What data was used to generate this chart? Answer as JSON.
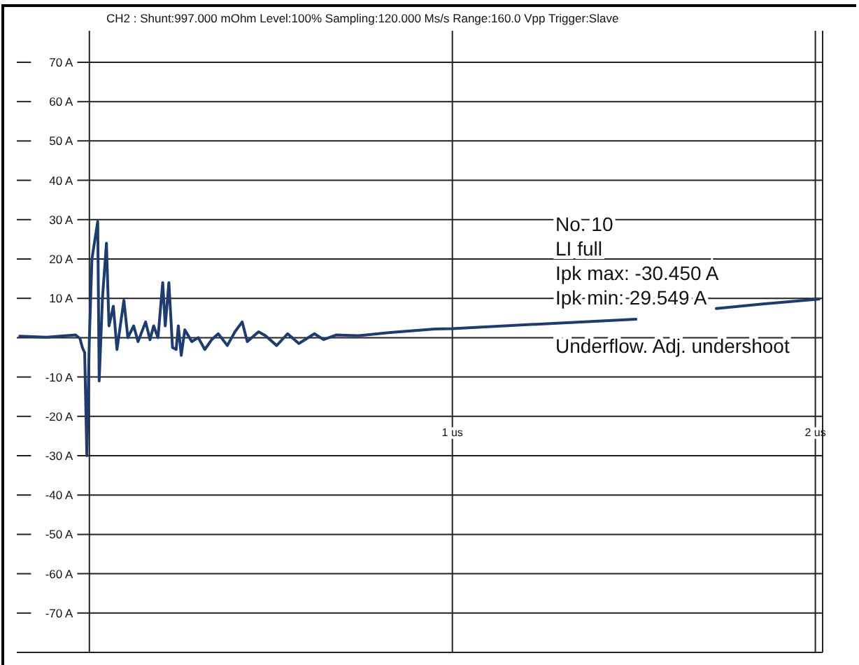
{
  "chart_data": {
    "type": "line",
    "title": "CH2 : Shunt:997.000 mOhm  Level:100%  Sampling:120.000 Ms/s  Range:160.0 Vpp  Trigger:Slave",
    "annotations": [
      "No. 10",
      "LI full",
      "Ipk max: -30.450 A",
      "Ipk min: 29.549 A",
      "Underflow. Adj. undershoot"
    ],
    "xlim": [
      -0.2,
      2.02
    ],
    "xticks": [
      {
        "value": 1,
        "label": "1 us"
      },
      {
        "value": 2,
        "label": "2 us"
      }
    ],
    "ylim": [
      -80,
      78
    ],
    "yticks": [
      {
        "value": -70,
        "label": "-70 A"
      },
      {
        "value": -60,
        "label": "-60 A"
      },
      {
        "value": -50,
        "label": "-50 A"
      },
      {
        "value": -40,
        "label": "-40 A"
      },
      {
        "value": -30,
        "label": "-30 A"
      },
      {
        "value": -20,
        "label": "-20 A"
      },
      {
        "value": -10,
        "label": "-10 A"
      },
      {
        "value": 0,
        "label": null
      },
      {
        "value": 10,
        "label": "10 A"
      },
      {
        "value": 20,
        "label": "20 A"
      },
      {
        "value": 30,
        "label": "30 A"
      },
      {
        "value": 40,
        "label": "40 A"
      },
      {
        "value": 50,
        "label": "50 A"
      },
      {
        "value": 60,
        "label": "60 A"
      },
      {
        "value": 70,
        "label": "70 A"
      }
    ],
    "grid": true,
    "marker": "none",
    "line_style": "solid",
    "series": [
      {
        "color": "#1f3c6e",
        "x": [
          -0.192,
          -0.118,
          -0.038,
          -0.026,
          -0.019,
          -0.013,
          -0.007,
          0,
          0.007,
          0.023,
          0.027,
          0.036,
          0.047,
          0.054,
          0.066,
          0.076,
          0.095,
          0.106,
          0.122,
          0.134,
          0.155,
          0.167,
          0.177,
          0.189,
          0.202,
          0.209,
          0.219,
          0.229,
          0.239,
          0.245,
          0.253,
          0.263,
          0.282,
          0.3,
          0.318,
          0.337,
          0.355,
          0.38,
          0.401,
          0.421,
          0.435,
          0.466,
          0.485,
          0.516,
          0.546,
          0.577,
          0.62,
          0.645,
          0.681,
          0.743,
          0.829,
          0.952,
          1.0,
          1.25,
          1.506,
          1.6,
          1.727,
          1.85,
          2.01
        ],
        "values": [
          0.4,
          0.1,
          0.7,
          -0.2,
          -2.6,
          -3.8,
          -30,
          0,
          20,
          29.5,
          -11,
          10,
          24,
          3,
          8,
          -3,
          9.5,
          0,
          3,
          -1,
          4,
          -0.5,
          3,
          0,
          14,
          3,
          14,
          -2.5,
          -3,
          3,
          -4.5,
          2,
          -1,
          0,
          -3,
          -0.5,
          1,
          -2,
          1.5,
          4,
          -1,
          1.5,
          0.5,
          -2,
          1,
          -1.5,
          1,
          -0.5,
          0.7,
          0.5,
          1.3,
          2.2,
          2.3,
          3.5,
          4.7,
          null,
          7.4,
          8.5,
          9.8
        ]
      }
    ]
  }
}
